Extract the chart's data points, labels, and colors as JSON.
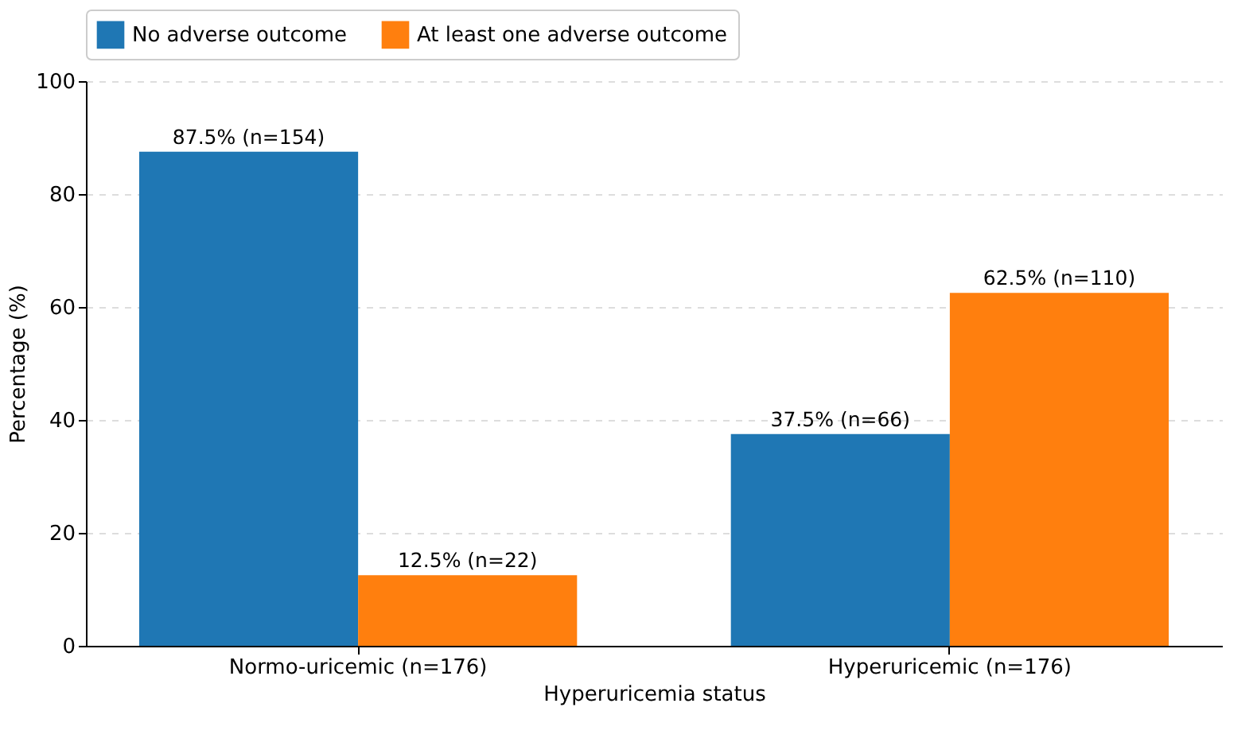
{
  "chart_data": {
    "type": "bar",
    "xlabel": "Hyperuricemia status",
    "ylabel": "Percentage (%)",
    "categories": [
      "Normo-uricemic (n=176)",
      "Hyperuricemic (n=176)"
    ],
    "series": [
      {
        "name": "No adverse outcome",
        "color": "#1f77b4",
        "values": [
          87.5,
          37.5
        ],
        "value_labels": [
          "87.5% (n=154)",
          "37.5% (n=66)"
        ]
      },
      {
        "name": "At least one adverse outcome",
        "color": "#ff7f0e",
        "values": [
          12.5,
          62.5
        ],
        "value_labels": [
          "12.5% (n=22)",
          "62.5% (n=110)"
        ]
      }
    ],
    "ylim": [
      0,
      100
    ],
    "yticks": [
      0,
      20,
      40,
      60,
      80,
      100
    ],
    "grid": "y",
    "legend": "top"
  }
}
